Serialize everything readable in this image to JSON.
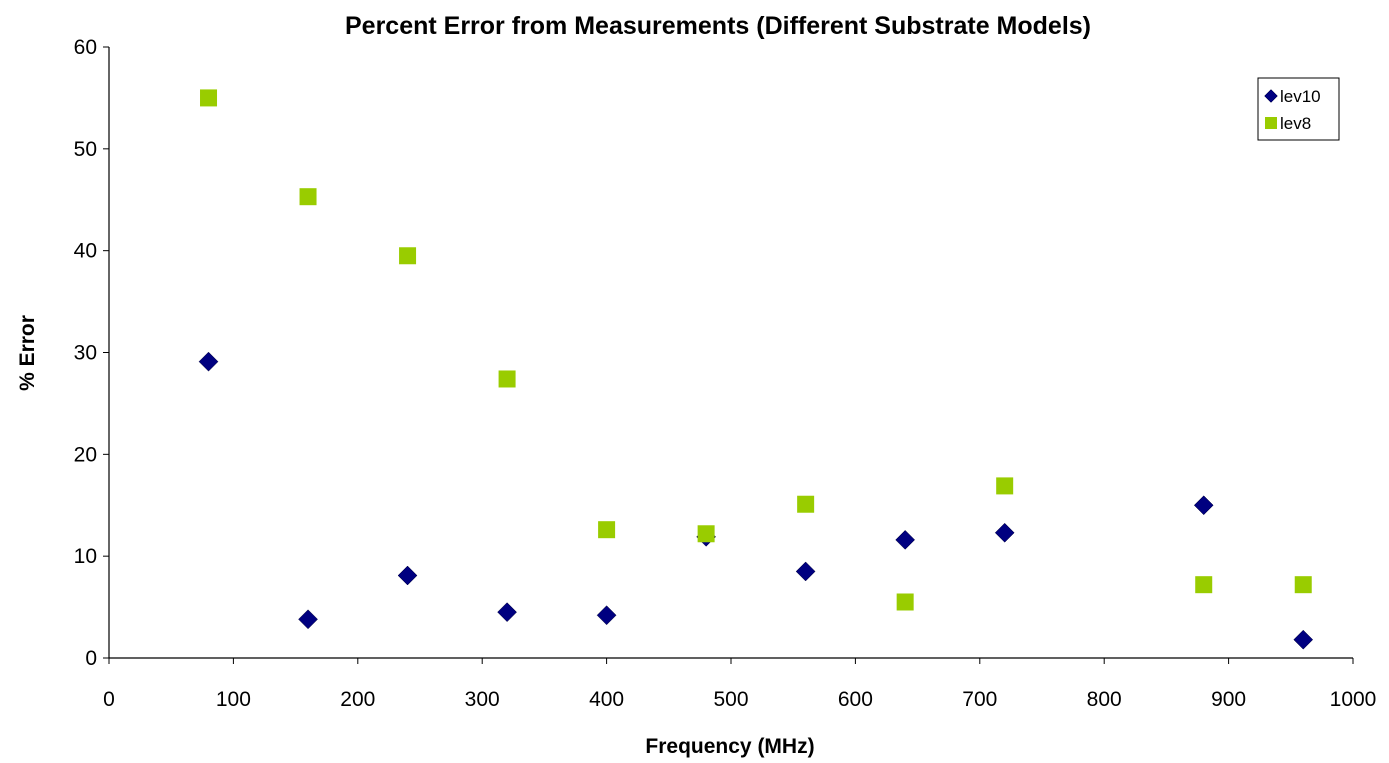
{
  "chart_data": {
    "type": "scatter",
    "title": "Percent Error from Measurements (Different Substrate Models)",
    "xlabel": "Frequency (MHz)",
    "ylabel": "% Error",
    "xlim": [
      0,
      1000
    ],
    "ylim": [
      0,
      60
    ],
    "xticks": [
      0,
      100,
      200,
      300,
      400,
      500,
      600,
      700,
      800,
      900,
      1000
    ],
    "yticks": [
      0,
      10,
      20,
      30,
      40,
      50,
      60
    ],
    "grid": false,
    "legend_position": "top-right",
    "series": [
      {
        "name": "lev10",
        "marker": "diamond",
        "color": "#000080",
        "points": [
          [
            80,
            29.1
          ],
          [
            160,
            3.8
          ],
          [
            240,
            8.1
          ],
          [
            320,
            4.5
          ],
          [
            400,
            4.2
          ],
          [
            480,
            11.9
          ],
          [
            560,
            8.5
          ],
          [
            640,
            11.6
          ],
          [
            720,
            12.3
          ],
          [
            880,
            15.0
          ],
          [
            960,
            1.8
          ]
        ]
      },
      {
        "name": "lev8",
        "marker": "square",
        "color": "#99CC00",
        "points": [
          [
            80,
            55.0
          ],
          [
            160,
            45.3
          ],
          [
            240,
            39.5
          ],
          [
            320,
            27.4
          ],
          [
            400,
            12.6
          ],
          [
            480,
            12.2
          ],
          [
            560,
            15.1
          ],
          [
            640,
            5.5
          ],
          [
            720,
            16.9
          ],
          [
            880,
            7.2
          ],
          [
            960,
            7.2
          ]
        ]
      }
    ]
  }
}
